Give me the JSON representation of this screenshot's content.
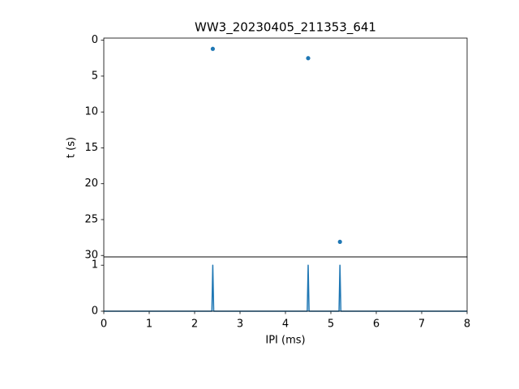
{
  "chart_data": [
    {
      "type": "scatter",
      "title": "WW3_20230405_211353_641",
      "y_label": "t (s)",
      "x": [
        2.4,
        4.5,
        5.2
      ],
      "values": [
        1.2,
        2.5,
        28.1
      ],
      "color": "#1f77b4",
      "xlim": [
        0,
        8
      ],
      "ylim": [
        30.2,
        -0.3
      ],
      "yticks": [
        0,
        5,
        10,
        15,
        20,
        25,
        30
      ]
    },
    {
      "type": "line",
      "x_label": "IPI (ms)",
      "x": [
        0,
        2.38,
        2.4,
        2.42,
        4.48,
        4.5,
        4.52,
        5.18,
        5.2,
        5.22,
        8
      ],
      "values": [
        0,
        0,
        1,
        0,
        0,
        1,
        0,
        0,
        1,
        0,
        0
      ],
      "color": "#1f77b4",
      "xlim": [
        0,
        8
      ],
      "ylim": [
        0,
        1.18
      ],
      "xticks": [
        0,
        1,
        2,
        3,
        4,
        5,
        6,
        7,
        8
      ],
      "yticks": [
        0,
        1
      ]
    }
  ]
}
